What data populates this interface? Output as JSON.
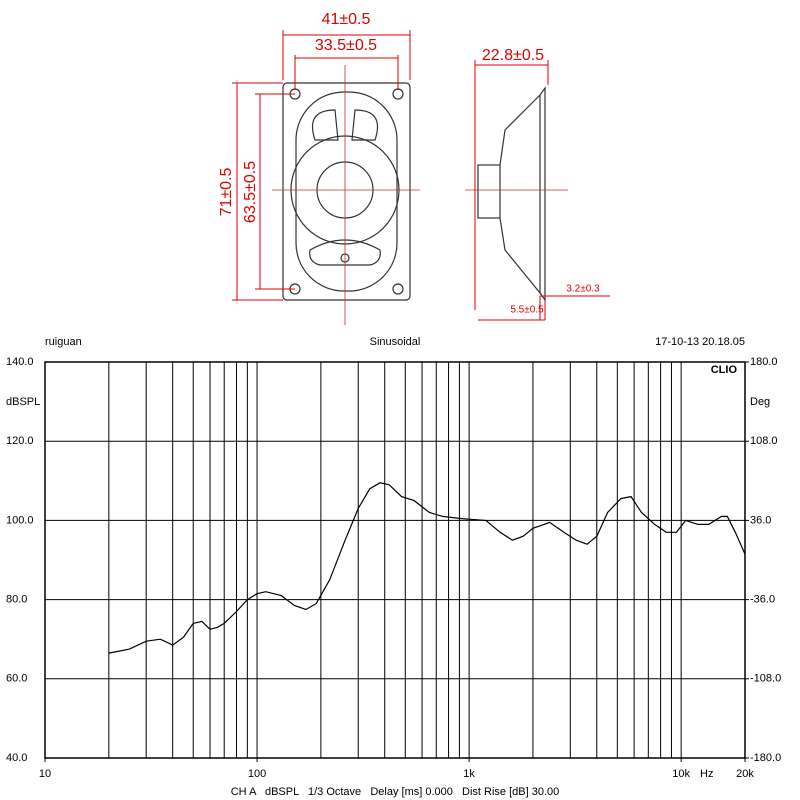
{
  "drawing": {
    "dimensions": [
      "41±0.5",
      "33.5±0.5",
      "22.8±0.5",
      "71±0.5",
      "63.5±0.5",
      "3.2±0.3",
      "5.5±0.5"
    ]
  },
  "chart_data": {
    "type": "line",
    "log_x": true,
    "title": "Sinusoidal",
    "header_left": "ruiguan",
    "header_right": "17-10-13 20.18.05",
    "brand": "CLIO",
    "y_label": "dBSPL",
    "y2_label": "Deg",
    "x_unit": "Hz",
    "footer": "CH A   dBSPL   1/3 Octave   Delay [ms] 0.000   Dist Rise [dB] 30.00",
    "color": "#000000",
    "grid": true,
    "x": [
      20,
      25,
      30,
      35,
      40,
      45,
      50,
      55,
      60,
      65,
      70,
      80,
      90,
      100,
      110,
      130,
      150,
      170,
      190,
      220,
      260,
      300,
      340,
      380,
      420,
      480,
      550,
      650,
      750,
      900,
      1000,
      1200,
      1400,
      1600,
      1800,
      2000,
      2400,
      2800,
      3200,
      3600,
      4000,
      4500,
      5200,
      5800,
      6500,
      7500,
      8500,
      9500,
      10500,
      12000,
      13500,
      15500,
      16500,
      18000,
      20000
    ],
    "values": [
      66.5,
      67.5,
      69.5,
      70,
      68.5,
      70.5,
      74,
      74.5,
      72.5,
      73,
      74,
      77,
      80,
      81.5,
      82,
      81,
      78.5,
      77.5,
      79,
      85,
      95,
      103,
      108,
      109.5,
      109,
      106,
      105,
      102,
      101,
      100.5,
      100.3,
      100,
      97,
      95,
      96,
      98,
      99.5,
      97,
      95,
      94,
      96,
      102,
      105.5,
      106,
      102,
      99,
      97,
      97,
      100,
      99,
      99,
      101,
      101,
      97,
      91.5
    ],
    "xlim": [
      10,
      20000
    ],
    "xticks": [
      10,
      100,
      {
        "value": 1000,
        "label": "1k"
      },
      {
        "value": 10000,
        "label": "10k"
      },
      {
        "value": 20000,
        "label": "20k"
      }
    ],
    "xgrid": [
      20,
      30,
      40,
      50,
      60,
      70,
      80,
      90,
      100,
      200,
      300,
      400,
      500,
      600,
      700,
      800,
      900,
      1000,
      2000,
      3000,
      4000,
      5000,
      6000,
      7000,
      8000,
      9000,
      10000,
      20000
    ],
    "ylim": [
      40,
      140
    ],
    "yticks": [
      {
        "value": 40,
        "label": "40.0"
      },
      {
        "value": 60,
        "label": "60.0"
      },
      {
        "value": 80,
        "label": "80.0"
      },
      {
        "value": 100,
        "label": "100.0"
      },
      {
        "value": 120,
        "label": "120.0"
      },
      {
        "value": 140,
        "label": "140.0"
      }
    ],
    "y2lim": [
      -180,
      180
    ],
    "y2ticks": [
      {
        "value": 180,
        "label": "180.0"
      },
      {
        "value": 108,
        "label": "108.0"
      },
      {
        "value": 36,
        "label": "36.0"
      },
      {
        "value": -36,
        "label": "-36.0"
      },
      {
        "value": -108,
        "label": "-108.0"
      },
      {
        "value": -180,
        "label": "-180.0"
      }
    ]
  }
}
